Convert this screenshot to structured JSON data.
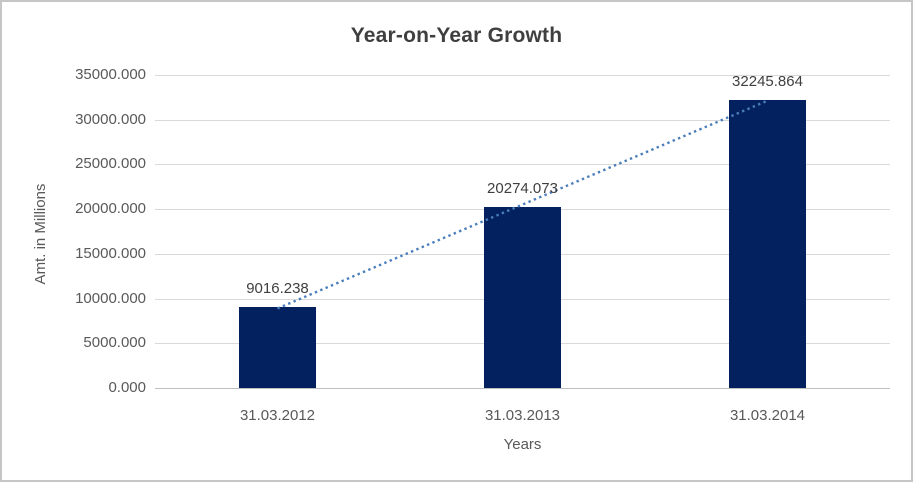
{
  "chart": {
    "colors": {
      "bar_fill": "#03215E",
      "trendline": "#4A7EBB",
      "gridline": "#D9D9D9",
      "axis_line": "#BFBFBF",
      "title_text": "#3F3F3F",
      "tick_text": "#595959",
      "data_label_text": "#3F3F3F",
      "frame_border": "#C6C6C6",
      "background": "#FFFFFF"
    }
  },
  "chart_data": {
    "type": "bar",
    "title": "Year-on-Year Growth",
    "xlabel": "Years",
    "ylabel": "Amt. in Millions",
    "categories": [
      "31.03.2012",
      "31.03.2013",
      "31.03.2014"
    ],
    "values": [
      9016.238,
      20274.073,
      32245.864
    ],
    "data_labels": [
      "9016.238",
      "20274.073",
      "32245.864"
    ],
    "ylim": [
      0,
      35000
    ],
    "y_ticks": [
      0,
      5000,
      10000,
      15000,
      20000,
      25000,
      30000,
      35000
    ],
    "y_tick_labels": [
      "0.000",
      "5000.000",
      "10000.000",
      "15000.000",
      "20000.000",
      "25000.000",
      "30000.000",
      "35000.000"
    ],
    "grid": "horizontal",
    "legend": "none",
    "trendline": {
      "type": "linear",
      "style": "dotted"
    }
  }
}
